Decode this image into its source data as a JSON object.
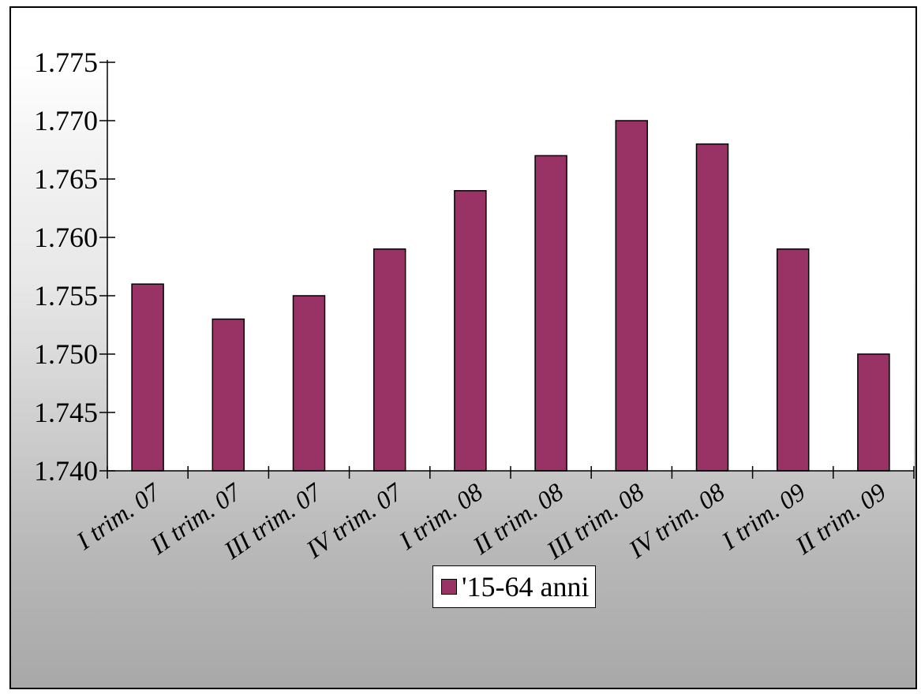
{
  "chart_data": {
    "type": "bar",
    "categories": [
      "I  trim. 07",
      "II trim. 07",
      "III trim. 07",
      "IV trim. 07",
      "I  trim. 08",
      "II trim. 08",
      "III trim. 08",
      "IV trim. 08",
      "I  trim. 09",
      "II trim. 09"
    ],
    "series": [
      {
        "name": "'15-64 anni",
        "values": [
          1.756,
          1.753,
          1.755,
          1.759,
          1.764,
          1.767,
          1.77,
          1.768,
          1.759,
          1.75
        ],
        "color": "#993366"
      }
    ],
    "yticks": [
      "1.740",
      "1.745",
      "1.750",
      "1.755",
      "1.760",
      "1.765",
      "1.770",
      "1.775"
    ],
    "ylim": [
      1.74,
      1.775
    ],
    "grid": false,
    "legend_position": "bottom-center",
    "plot_background": "#ffffff"
  }
}
